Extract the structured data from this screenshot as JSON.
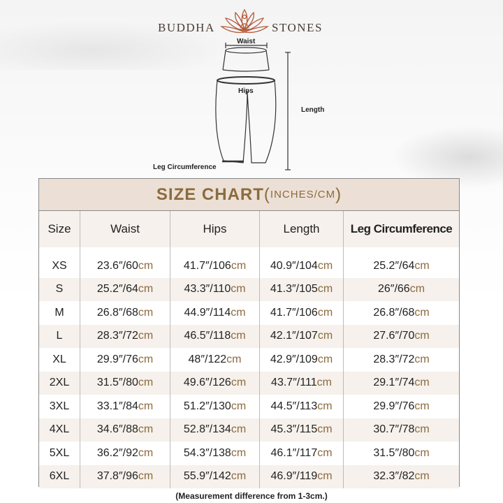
{
  "brand": {
    "left": "BUDDHA",
    "right": "STONES",
    "logo_icon": "lotus-meditation-icon",
    "logo_color": "#b5593b"
  },
  "diagram": {
    "waist": "Waist",
    "hips": "Hips",
    "length": "Length",
    "leg": "Leg Circumference"
  },
  "chart": {
    "title": "SIZE CHART",
    "title_open": "(",
    "title_sub": "INCHES/CM",
    "title_close": ")",
    "accent": "#8b6b3e",
    "header_bg": "#ece0d6",
    "stripe_bg": "#f6f1ec",
    "unit": "cm",
    "columns": [
      "Size",
      "Waist",
      "Hips",
      "Length",
      "Leg Circumference"
    ],
    "rows": [
      {
        "size": "XS",
        "waist": "23.6″/60",
        "hips": "41.7″/106",
        "length": "40.9″/104",
        "leg": "25.2″/64"
      },
      {
        "size": "S",
        "waist": "25.2″/64",
        "hips": "43.3″/110",
        "length": "41.3″/105",
        "leg": "26″/66"
      },
      {
        "size": "M",
        "waist": "26.8″/68",
        "hips": "44.9″/114",
        "length": "41.7″/106",
        "leg": "26.8″/68"
      },
      {
        "size": "L",
        "waist": "28.3″/72",
        "hips": "46.5″/118",
        "length": "42.1″/107",
        "leg": "27.6″/70"
      },
      {
        "size": "XL",
        "waist": "29.9″/76",
        "hips": "48″/122",
        "length": "42.9″/109",
        "leg": "28.3″/72"
      },
      {
        "size": "2XL",
        "waist": "31.5″/80",
        "hips": "49.6″/126",
        "length": "43.7″/111",
        "leg": "29.1″/74"
      },
      {
        "size": "3XL",
        "waist": "33.1″/84",
        "hips": "51.2″/130",
        "length": "44.5″/113",
        "leg": "29.9″/76"
      },
      {
        "size": "4XL",
        "waist": "34.6″/88",
        "hips": "52.8″/134",
        "length": "45.3″/115",
        "leg": "30.7″/78"
      },
      {
        "size": "5XL",
        "waist": "36.2″/92",
        "hips": "54.3″/138",
        "length": "46.1″/117",
        "leg": "31.5″/80"
      },
      {
        "size": "6XL",
        "waist": "37.8″/96",
        "hips": "55.9″/142",
        "length": "46.9″/119",
        "leg": "32.3″/82"
      }
    ]
  },
  "footnote": "(Measurement difference from 1-3cm.)"
}
